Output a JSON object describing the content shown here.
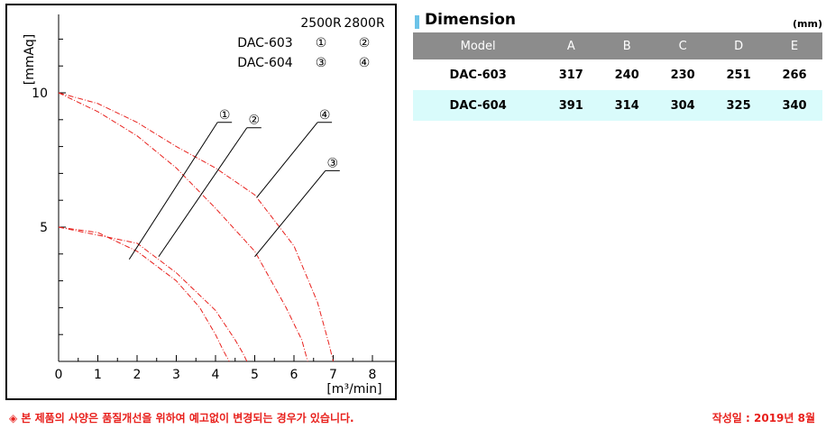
{
  "chart_data": {
    "type": "line",
    "xlabel": "[m³/min]",
    "ylabel": "[mmAq]",
    "xlim": [
      0,
      8.5
    ],
    "ylim": [
      0,
      13
    ],
    "x_ticks": [
      "0",
      "1",
      "2",
      "3",
      "4",
      "5",
      "6",
      "7",
      "8"
    ],
    "y_ticks": [
      "5",
      "10"
    ],
    "legend": {
      "headers": [
        "2500R",
        "2800R"
      ],
      "rows": [
        {
          "model": "DAC-603",
          "marks": [
            "①",
            "②"
          ]
        },
        {
          "model": "DAC-604",
          "marks": [
            "③",
            "④"
          ]
        }
      ]
    },
    "series": [
      {
        "name": "①",
        "color": "#e8201c",
        "points": [
          [
            0,
            5.0
          ],
          [
            1.0,
            4.8
          ],
          [
            2.0,
            4.1
          ],
          [
            3.0,
            3.0
          ],
          [
            3.6,
            2.0
          ],
          [
            4.0,
            1.0
          ],
          [
            4.2,
            0.4
          ],
          [
            4.35,
            0.0
          ]
        ]
      },
      {
        "name": "②",
        "color": "#e8201c",
        "points": [
          [
            0,
            5.0
          ],
          [
            1.0,
            4.7
          ],
          [
            2.0,
            4.4
          ],
          [
            3.0,
            3.3
          ],
          [
            4.0,
            1.9
          ],
          [
            4.5,
            0.8
          ],
          [
            4.7,
            0.3
          ],
          [
            4.8,
            0.0
          ]
        ]
      },
      {
        "name": "③",
        "color": "#e8201c",
        "points": [
          [
            0,
            10.0
          ],
          [
            1.0,
            9.3
          ],
          [
            2.0,
            8.4
          ],
          [
            3.0,
            7.2
          ],
          [
            4.0,
            5.7
          ],
          [
            5.0,
            4.1
          ],
          [
            5.8,
            2.0
          ],
          [
            6.2,
            0.8
          ],
          [
            6.35,
            0.0
          ]
        ]
      },
      {
        "name": "④",
        "color": "#e8201c",
        "points": [
          [
            0,
            10.0
          ],
          [
            1.0,
            9.6
          ],
          [
            2.0,
            8.9
          ],
          [
            3.0,
            8.0
          ],
          [
            4.0,
            7.2
          ],
          [
            5.0,
            6.2
          ],
          [
            6.0,
            4.3
          ],
          [
            6.6,
            2.2
          ],
          [
            6.9,
            0.6
          ],
          [
            7.0,
            0.0
          ]
        ]
      }
    ],
    "annotations": [
      {
        "label": "①",
        "anchor": [
          1.8,
          3.8
        ],
        "tip": [
          4.05,
          8.9
        ]
      },
      {
        "label": "②",
        "anchor": [
          2.55,
          3.9
        ],
        "tip": [
          4.8,
          8.7
        ]
      },
      {
        "label": "④",
        "anchor": [
          5.05,
          6.1
        ],
        "tip": [
          6.6,
          8.9
        ]
      },
      {
        "label": "③",
        "anchor": [
          5.0,
          3.9
        ],
        "tip": [
          6.8,
          7.1
        ]
      }
    ]
  },
  "dimension": {
    "title": "Dimension",
    "unit": "(mm)",
    "marker_color": "#6cc3e8",
    "header": [
      "Model",
      "A",
      "B",
      "C",
      "D",
      "E"
    ],
    "rows": [
      [
        "DAC-603",
        "317",
        "240",
        "230",
        "251",
        "266"
      ],
      [
        "DAC-604",
        "391",
        "314",
        "304",
        "325",
        "340"
      ]
    ]
  },
  "footer": {
    "note": "◈ 본 제품의 사양은 품질개선을 위하여 예고없이 변경되는 경우가 있습니다.",
    "date": "작성일 : 2019년 8월",
    "color": "#e8201c"
  }
}
